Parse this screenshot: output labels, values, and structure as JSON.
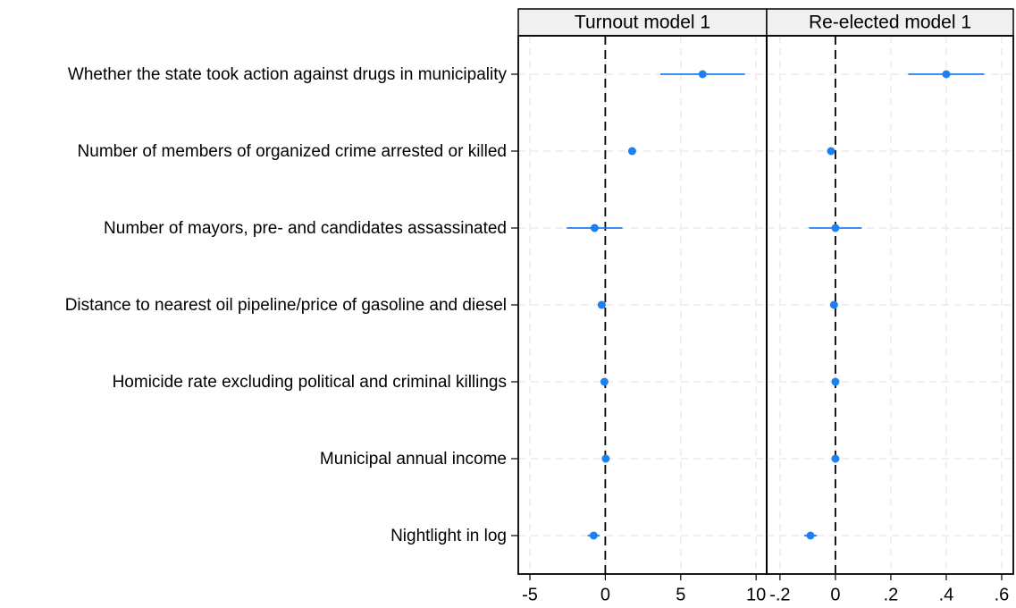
{
  "chart_data": [
    {
      "type": "coefplot",
      "title": "Turnout model 1",
      "categories": [
        "Whether the state took action against drugs in municipality",
        "Number of members of organized crime arrested or killed",
        "Number of mayors, pre- and candidates assassinated",
        "Distance to nearest oil pipeline/price of gasoline and diesel",
        "Homicide rate excluding political and criminal killings",
        "Municipal annual income",
        "Nightlight in log"
      ],
      "values": [
        6.45,
        1.78,
        -0.71,
        -0.24,
        -0.06,
        0.03,
        -0.77
      ],
      "errors": [
        2.8,
        0.1,
        1.85,
        0.1,
        0.08,
        0.08,
        0.4
      ],
      "color": "#1e7ff0",
      "xline": 0,
      "xlim": [
        -5.77,
        10.7
      ],
      "xticks": [
        -5,
        0,
        5,
        10
      ],
      "grid": true
    },
    {
      "type": "coefplot",
      "title": "Re-elected model 1",
      "values": [
        0.4,
        -0.016,
        0,
        -0.005,
        0,
        0,
        -0.09
      ],
      "errors": [
        0.137,
        0.005,
        0.095,
        0.004,
        0.004,
        0.004,
        0.023
      ],
      "color": "#1e7ff0",
      "xline": 0,
      "xlim": [
        -0.248,
        0.642
      ],
      "xticks": [
        {
          "value": -0.2,
          "label": "-.2"
        },
        0,
        {
          "value": 0.2,
          "label": ".2"
        },
        {
          "value": 0.4,
          "label": ".4"
        },
        {
          "value": 0.6,
          "label": ".6"
        }
      ],
      "grid": true
    }
  ]
}
